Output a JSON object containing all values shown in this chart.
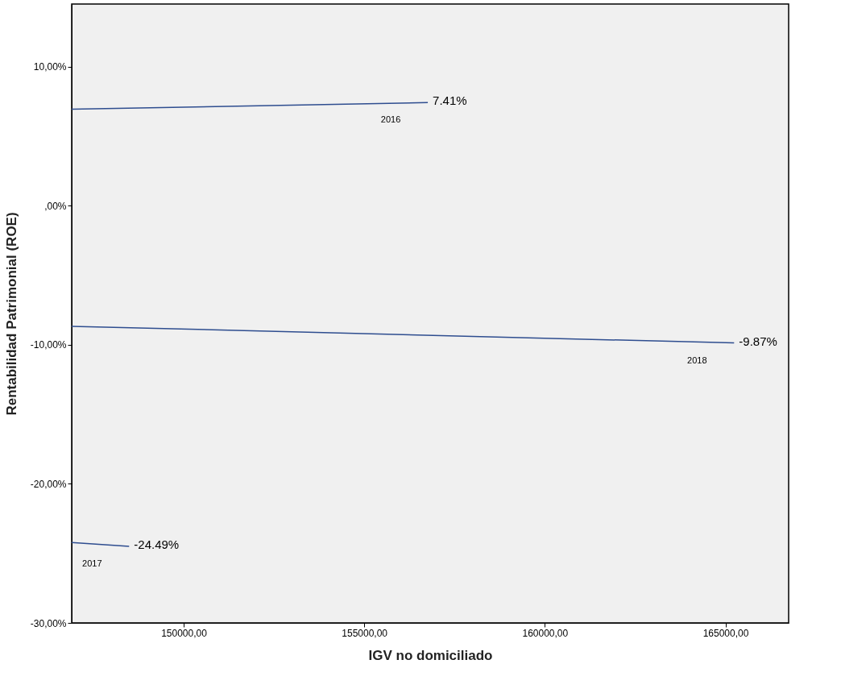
{
  "chart_data": {
    "type": "line",
    "xlabel": "IGV no domiciliado",
    "ylabel": "Rentabilidad Patrimonial (ROE)",
    "xlim": [
      146900,
      166750
    ],
    "ylim": [
      -30,
      14.5
    ],
    "xticks": [
      {
        "value": 150000,
        "label": "150000,00"
      },
      {
        "value": 155000,
        "label": "155000,00"
      },
      {
        "value": 160000,
        "label": "160000,00"
      },
      {
        "value": 165000,
        "label": "165000,00"
      }
    ],
    "yticks": [
      {
        "value": -30,
        "label": "-30,00%"
      },
      {
        "value": -20,
        "label": "-20,00%"
      },
      {
        "value": -10,
        "label": "-10,00%"
      },
      {
        "value": 0,
        "label": ",00%"
      },
      {
        "value": 10,
        "label": "10,00%"
      }
    ],
    "series": [
      {
        "name": "2016",
        "color": "#2e4d8f",
        "x": [
          146900,
          156760
        ],
        "values": [
          6.94,
          7.41
        ],
        "value_labels": [
          null,
          "7.41%"
        ]
      },
      {
        "name": "2018",
        "color": "#2e4d8f",
        "x": [
          146900,
          165240
        ],
        "values": [
          -8.67,
          -9.87
        ],
        "value_labels": [
          null,
          "-9.87%"
        ]
      },
      {
        "name": "2017",
        "color": "#2e4d8f",
        "x": [
          146900,
          148490
        ],
        "values": [
          -24.22,
          -24.49
        ],
        "value_labels": [
          null,
          "-24.49%"
        ]
      }
    ],
    "grid": false,
    "legend": false,
    "marker": "none",
    "line_style": "solid"
  }
}
